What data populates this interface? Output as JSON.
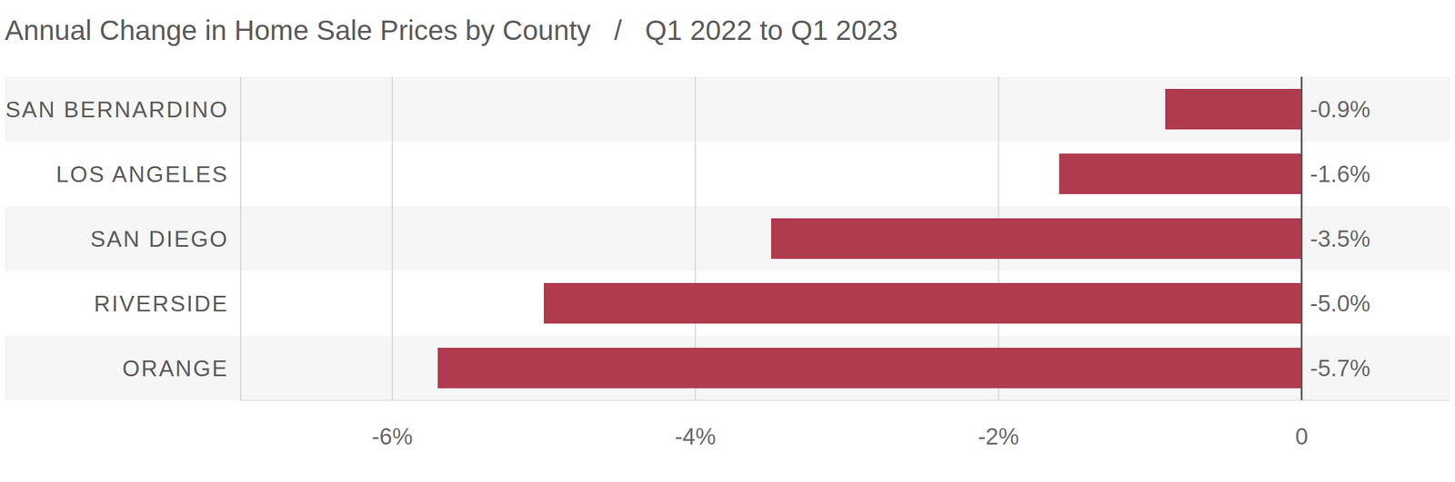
{
  "chart_data": {
    "type": "bar",
    "orientation": "horizontal",
    "title": "Annual Change in Home Sale Prices by County   /   Q1 2022 to Q1 2023",
    "categories": [
      "SAN BERNARDINO",
      "LOS ANGELES",
      "SAN DIEGO",
      "RIVERSIDE",
      "ORANGE"
    ],
    "values": [
      -0.9,
      -1.6,
      -3.5,
      -5.0,
      -5.7
    ],
    "value_labels": [
      "-0.9%",
      "-1.6%",
      "-3.5%",
      "-5.0%",
      "-5.7%"
    ],
    "color": "#b03a4e",
    "xlim": [
      -7,
      1
    ],
    "xticks": [
      {
        "value": -6,
        "label": "-6%"
      },
      {
        "value": -4,
        "label": "-4%"
      },
      {
        "value": -2,
        "label": "-2%"
      },
      0
    ],
    "grid": true,
    "data_labels": true
  }
}
